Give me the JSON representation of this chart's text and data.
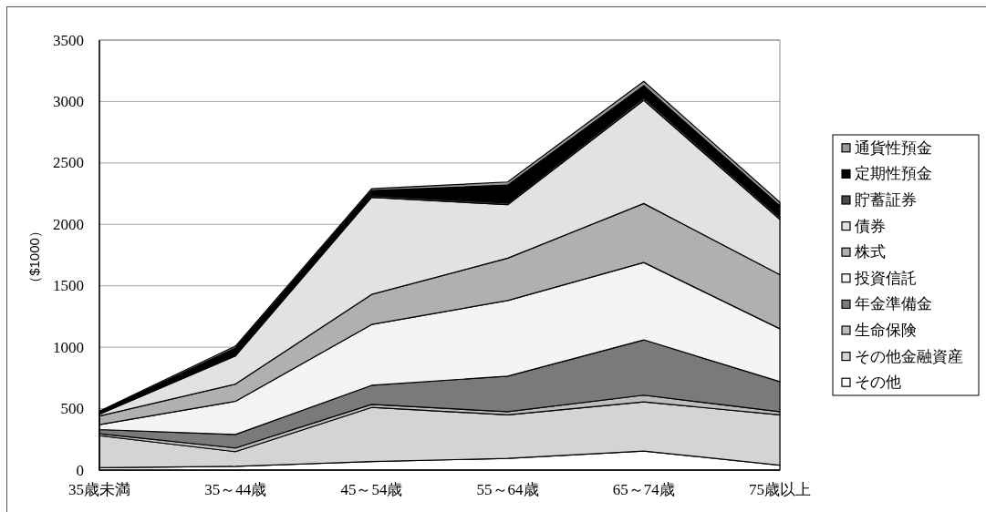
{
  "chart_data": {
    "type": "area",
    "stacked": true,
    "ylabel": "（$1000）",
    "categories": [
      "35歳未満",
      "35～44歳",
      "45～54歳",
      "55～64歳",
      "65～74歳",
      "75歳以上"
    ],
    "ylim": [
      0,
      3500
    ],
    "yticks": [
      0,
      500,
      1000,
      1500,
      2000,
      2500,
      3000,
      3500
    ],
    "grid": "y",
    "legend": "right",
    "series": [
      {
        "name": "その他",
        "color": "#ffffff",
        "values": [
          20,
          30,
          70,
          95,
          155,
          40
        ]
      },
      {
        "name": "その他金融資産",
        "color": "#d4d4d4",
        "values": [
          260,
          120,
          440,
          355,
          400,
          410
        ]
      },
      {
        "name": "生命保険",
        "color": "#bdbdbd",
        "values": [
          15,
          30,
          25,
          25,
          55,
          25
        ]
      },
      {
        "name": "年金準備金",
        "color": "#7a7a7a",
        "values": [
          35,
          110,
          155,
          290,
          450,
          245
        ]
      },
      {
        "name": "投資信託",
        "color": "#f4f4f4",
        "values": [
          40,
          270,
          495,
          615,
          630,
          430
        ]
      },
      {
        "name": "株式",
        "color": "#b0b0b0",
        "values": [
          70,
          140,
          245,
          345,
          480,
          440
        ]
      },
      {
        "name": "債券",
        "color": "#e2e2e2",
        "values": [
          15,
          230,
          790,
          435,
          840,
          450
        ]
      },
      {
        "name": "貯蓄証券",
        "color": "#4a4a4a",
        "values": [
          7,
          10,
          15,
          15,
          20,
          20
        ]
      },
      {
        "name": "定期性預金",
        "color": "#000000",
        "values": [
          10,
          55,
          40,
          145,
          100,
          90
        ]
      },
      {
        "name": "通貨性預金",
        "color": "#9a9a9a",
        "values": [
          8,
          15,
          15,
          25,
          35,
          30
        ]
      }
    ]
  }
}
